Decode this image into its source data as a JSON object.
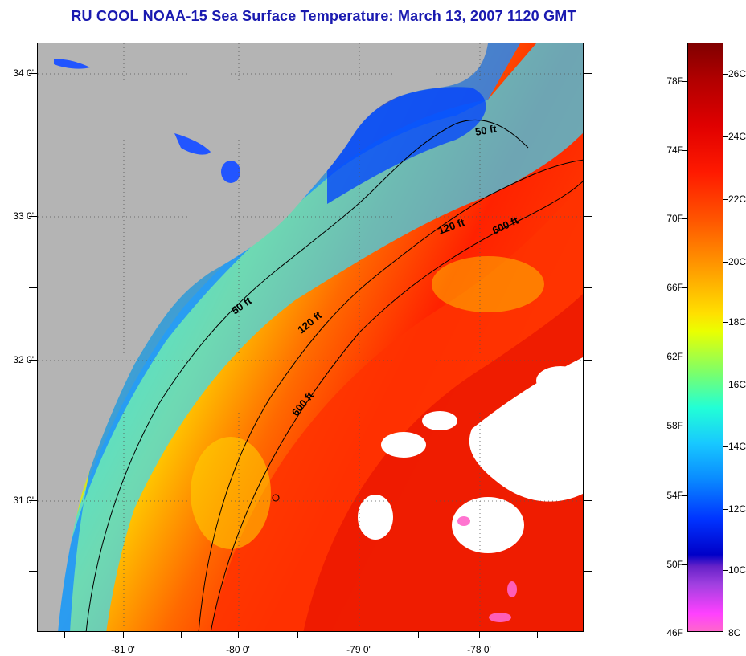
{
  "title": "RU COOL  NOAA-15  Sea Surface Temperature:  March 13, 2007 1120 GMT",
  "map": {
    "latitudes": [
      "34 0'",
      "33 0'",
      "32 0'",
      "31 0'"
    ],
    "longitudes": [
      "-81 0'",
      "-80 0'",
      "-79 0'",
      "-78 0'"
    ],
    "isobaths": [
      "50 ft",
      "120 ft",
      "600 ft",
      "50 ft",
      "120 ft",
      "600 ft"
    ],
    "colors": {
      "land": "#b4b4b4",
      "cloud": "#ffffff",
      "title": "#1a1ab0"
    }
  },
  "colorbar": {
    "fahrenheit": [
      "78F",
      "74F",
      "70F",
      "66F",
      "62F",
      "58F",
      "54F",
      "50F",
      "46F"
    ],
    "celsius": [
      "26C",
      "24C",
      "22C",
      "20C",
      "18C",
      "16C",
      "14C",
      "12C",
      "10C",
      "8C"
    ]
  }
}
